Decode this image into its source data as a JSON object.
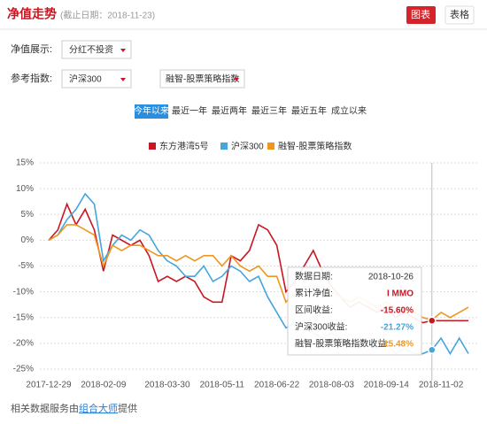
{
  "header": {
    "title": "净值走势",
    "date_note": "(截止日期：2018-11-23)",
    "buttons": [
      "图表",
      "表格"
    ]
  },
  "controls": {
    "display_label": "净值展示:",
    "display_value": "分红不投资",
    "index_label": "参考指数:",
    "index_value": "沪深300",
    "index_value2": "融智-股票策略指数",
    "tabs": [
      "今年以来",
      "最近一年",
      "最近两年",
      "最近三年",
      "最近五年",
      "成立以来"
    ]
  },
  "chart_data": {
    "type": "line",
    "categories": [
      "2017-12-29",
      null,
      null,
      null,
      null,
      null,
      "2018-02-09",
      null,
      null,
      null,
      null,
      null,
      null,
      "2018-03-30",
      null,
      null,
      null,
      null,
      null,
      "2018-05-11",
      null,
      null,
      null,
      null,
      null,
      "2018-06-22",
      null,
      null,
      null,
      null,
      null,
      "2018-08-03",
      null,
      null,
      null,
      null,
      null,
      "2018-09-14",
      null,
      null,
      null,
      null,
      null,
      "2018-11-02",
      null,
      null,
      null
    ],
    "series": [
      {
        "name": "东方港湾5号",
        "color": "#c81623",
        "values": [
          0,
          2,
          7,
          3,
          6,
          2,
          -6,
          1,
          0,
          -1,
          0,
          -3,
          -8,
          -7,
          -8,
          -7,
          -8,
          -11,
          -12,
          -12,
          -3,
          -4,
          -2,
          3,
          2,
          -1,
          -10,
          -8,
          -5,
          -2,
          -6,
          -9,
          -11,
          -13,
          -12,
          -13,
          -14,
          -13,
          -15,
          -14,
          -15,
          -16,
          -15.6,
          -15.6,
          -15.6,
          -15.6,
          -15.6
        ]
      },
      {
        "name": "沪深300",
        "color": "#45a5dc",
        "values": [
          0,
          1,
          4,
          6,
          9,
          7,
          -4,
          -1,
          1,
          0,
          2,
          1,
          -2,
          -4,
          -5,
          -7,
          -7,
          -5,
          -8,
          -7,
          -5,
          -6,
          -8,
          -7,
          -11,
          -14,
          -17,
          -16,
          -17,
          -18,
          -19,
          -18,
          -19,
          -20,
          -19,
          -20,
          -21,
          -20,
          -22,
          -21,
          -22,
          -22,
          -21.27,
          -19,
          -22,
          -19,
          -22
        ]
      },
      {
        "name": "融智-股票策略指数",
        "color": "#f0961e",
        "values": [
          0,
          1,
          3,
          3,
          2,
          1,
          -5,
          -1,
          -2,
          -1,
          -1,
          -2,
          -3,
          -3,
          -4,
          -3,
          -4,
          -3,
          -3,
          -5,
          -3,
          -5,
          -6,
          -5,
          -7,
          -7,
          -12,
          -10,
          -9,
          -9,
          -9,
          -10,
          -11,
          -12,
          -11,
          -12,
          -13,
          -12,
          -13,
          -14,
          -14,
          -15,
          -15.48,
          -14,
          -15,
          -14,
          -13
        ]
      }
    ],
    "ylim": [
      -25,
      15
    ],
    "yticks": [
      {
        "value": 15,
        "label": "15%"
      },
      {
        "value": 10,
        "label": "10%"
      },
      {
        "value": 5,
        "label": "5%"
      },
      {
        "value": 0,
        "label": "0%"
      },
      {
        "value": -5,
        "label": "-5%"
      },
      {
        "value": -10,
        "label": "-10%"
      },
      {
        "value": -15,
        "label": "-15%"
      },
      {
        "value": -20,
        "label": "-20%"
      },
      {
        "value": -25,
        "label": "-25%"
      }
    ],
    "grid": true
  },
  "tooltip": {
    "rows": [
      [
        "数据日期:",
        "2018-10-26"
      ],
      [
        "累计净值:",
        "I MMO"
      ],
      [
        "区间收益:",
        "-15.60%"
      ],
      [
        "沪深300收益:",
        "-21.27%"
      ],
      [
        "融智-股票策略指数收益:",
        "-15.48%"
      ]
    ]
  },
  "footer": {
    "text": "相关数据服务由",
    "link": "组合大师",
    "text2": "提供"
  }
}
